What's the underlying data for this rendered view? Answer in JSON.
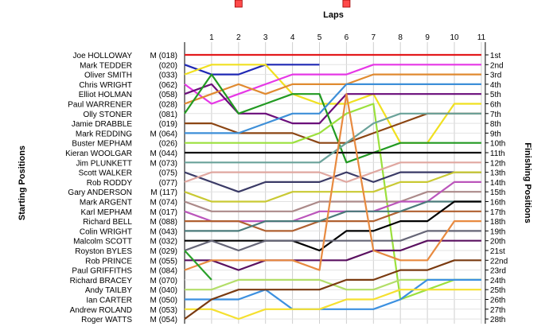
{
  "chart_data": {
    "type": "line",
    "title": "Laps",
    "ylabel_left": "Starting Positions",
    "ylabel_right": "Finishing Positions",
    "laps": [
      1,
      2,
      3,
      4,
      5,
      6,
      7,
      8,
      9,
      10,
      11
    ],
    "start_labels": [
      {
        "name": "Joe HOLLOWAY",
        "info": "M (018)"
      },
      {
        "name": "Mark TEDDER",
        "info": "(020)"
      },
      {
        "name": "Oliver SMITH",
        "info": "(033)"
      },
      {
        "name": "Chris WRIGHT",
        "info": "(062)"
      },
      {
        "name": "Elliot HOLMAN",
        "info": "(058)"
      },
      {
        "name": "Paul WARRENER",
        "info": "(028)"
      },
      {
        "name": "Olly STONER",
        "info": "(081)"
      },
      {
        "name": "Jamie DRABBLE",
        "info": "(019)"
      },
      {
        "name": "Mark REDDING",
        "info": "M (064)"
      },
      {
        "name": "Buster MEPHAM",
        "info": "(026)"
      },
      {
        "name": "Kieran WOOLGAR",
        "info": "M (044)"
      },
      {
        "name": "Jim PLUNKETT",
        "info": "M (073)"
      },
      {
        "name": "Scott WALKER",
        "info": "(075)"
      },
      {
        "name": "Rob RODDY",
        "info": "(077)"
      },
      {
        "name": "Gary ANDERSON",
        "info": "M (117)"
      },
      {
        "name": "Mark ARGENT",
        "info": "M (074)"
      },
      {
        "name": "Karl MEPHAM",
        "info": "M (017)"
      },
      {
        "name": "Richard BELL",
        "info": "M (088)"
      },
      {
        "name": "Colin WRIGHT",
        "info": "M (043)"
      },
      {
        "name": "Malcolm SCOTT",
        "info": "M (032)"
      },
      {
        "name": "Royston BYLES",
        "info": "M (029)"
      },
      {
        "name": "Rob PRINCE",
        "info": "M (055)"
      },
      {
        "name": "Paul GRIFFITHS",
        "info": "M (084)"
      },
      {
        "name": "Richard BRACEY",
        "info": "M (070)"
      },
      {
        "name": "Andy TAILBY",
        "info": "M (040)"
      },
      {
        "name": "Ian CARTER",
        "info": "M (050)"
      },
      {
        "name": "Andrew ROLAND",
        "info": "M (053)"
      },
      {
        "name": "Roger WATTS",
        "info": "M (054)"
      }
    ],
    "finish_labels": [
      "1st",
      "2nd",
      "3rd",
      "4th",
      "5th",
      "6th",
      "7th",
      "8th",
      "9th",
      "10th",
      "11th",
      "12th",
      "13th",
      "14th",
      "15th",
      "16th",
      "17th",
      "18th",
      "19th",
      "20th",
      "21st",
      "22nd",
      "23rd",
      "24th",
      "25th",
      "26th",
      "27th",
      "28th"
    ],
    "series": [
      {
        "color": "#e31a1c",
        "positions": [
          1,
          1,
          1,
          1,
          1,
          1,
          1,
          1,
          1,
          1,
          1,
          1
        ]
      },
      {
        "color": "#1f28b4",
        "positions": [
          2,
          3,
          3,
          2,
          2,
          2
        ],
        "retired_at_lap": 6
      },
      {
        "color": "#f0e020",
        "positions": [
          3,
          2,
          2,
          2,
          5,
          6,
          6,
          5,
          10,
          10,
          6,
          6
        ]
      },
      {
        "color": "#e637e6",
        "positions": [
          4,
          6,
          5,
          4,
          3,
          3,
          3,
          2,
          2,
          2,
          2,
          2
        ]
      },
      {
        "color": "#6a0d7a",
        "positions": [
          5,
          4,
          7,
          7,
          8,
          8,
          5,
          5,
          5,
          5,
          5,
          5
        ]
      },
      {
        "color": "#e08a30",
        "positions": [
          6,
          5,
          4,
          5,
          4,
          4,
          4,
          3,
          3,
          3,
          3,
          3
        ]
      },
      {
        "color": "#229a22",
        "positions": [
          7,
          3,
          7,
          6,
          5,
          5,
          12,
          11,
          10,
          10,
          10,
          10
        ]
      },
      {
        "color": "#8b4513",
        "positions": [
          8,
          8,
          9,
          9,
          9,
          10,
          10,
          9,
          8,
          7,
          7,
          7
        ]
      },
      {
        "color": "#3d8fd8",
        "positions": [
          9,
          9,
          9,
          8,
          7,
          7,
          4,
          4,
          4,
          4,
          4,
          4
        ]
      },
      {
        "color": "#9be03c",
        "positions": [
          10,
          10,
          10,
          10,
          10,
          9,
          7,
          6,
          26,
          25,
          24,
          24
        ]
      },
      {
        "color": "#111111",
        "positions": [
          11,
          11,
          11,
          11,
          11,
          11,
          11,
          11,
          11,
          11,
          11,
          11
        ]
      },
      {
        "color": "#6aa29a",
        "positions": [
          12,
          12,
          12,
          12,
          12,
          12,
          10,
          8,
          7,
          7,
          7,
          7
        ]
      },
      {
        "color": "#3a3a66",
        "positions": [
          13,
          14,
          15,
          14,
          14,
          14,
          13,
          14,
          13,
          13,
          13,
          13
        ]
      },
      {
        "color": "#e0a7a0",
        "positions": [
          14,
          13,
          13,
          13,
          13,
          13,
          14,
          13,
          12,
          12,
          12,
          12
        ]
      },
      {
        "color": "#c9c933",
        "positions": [
          15,
          16,
          16,
          16,
          15,
          15,
          15,
          15,
          14,
          14,
          13,
          13
        ]
      },
      {
        "color": "#ac8a8a",
        "positions": [
          16,
          17,
          17,
          17,
          17,
          16,
          16,
          16,
          16,
          15,
          15,
          15
        ]
      },
      {
        "color": "#bb55bb",
        "positions": [
          17,
          18,
          18,
          18,
          18,
          17,
          17,
          17,
          16,
          16,
          14,
          14
        ]
      },
      {
        "color": "#b06030",
        "positions": [
          18,
          18,
          18,
          19,
          19,
          18,
          18,
          18,
          17,
          17,
          17,
          17
        ]
      },
      {
        "color": "#4a7a7a",
        "positions": [
          19,
          19,
          19,
          18,
          18,
          18,
          17,
          17,
          17,
          16,
          16,
          16
        ]
      },
      {
        "color": "#000000",
        "positions": [
          20,
          20,
          20,
          20,
          20,
          21,
          19,
          19,
          18,
          18,
          16,
          16
        ]
      },
      {
        "color": "#666677",
        "positions": [
          21,
          20,
          21,
          20,
          20,
          20,
          20,
          20,
          20,
          19,
          19,
          19
        ]
      },
      {
        "color": "#5a1060",
        "positions": [
          22,
          22,
          23,
          22,
          22,
          22,
          22,
          21,
          21,
          20,
          20,
          20
        ]
      },
      {
        "color": "#e88a40",
        "positions": [
          23,
          22,
          22,
          22,
          22,
          23,
          5,
          21,
          22,
          22,
          18,
          18
        ]
      },
      {
        "color": "#2aa02a",
        "positions": [
          21,
          24
        ],
        "retired_at_lap": 2
      },
      {
        "color": "#b3de69",
        "positions": [
          25,
          25,
          24,
          24,
          24,
          24,
          25,
          25,
          24,
          24,
          24,
          24
        ]
      },
      {
        "color": "#3c90e0",
        "positions": [
          26,
          26,
          26,
          25,
          27,
          27,
          27,
          27,
          26,
          24,
          24,
          24
        ]
      },
      {
        "color": "#f5e030",
        "positions": [
          27,
          27,
          28,
          27,
          27,
          27,
          26,
          26,
          25,
          25,
          25,
          25
        ]
      },
      {
        "color": "#7a3a10",
        "positions": [
          28,
          26,
          25,
          25,
          25,
          25,
          24,
          24,
          23,
          23,
          22,
          22
        ]
      }
    ]
  }
}
